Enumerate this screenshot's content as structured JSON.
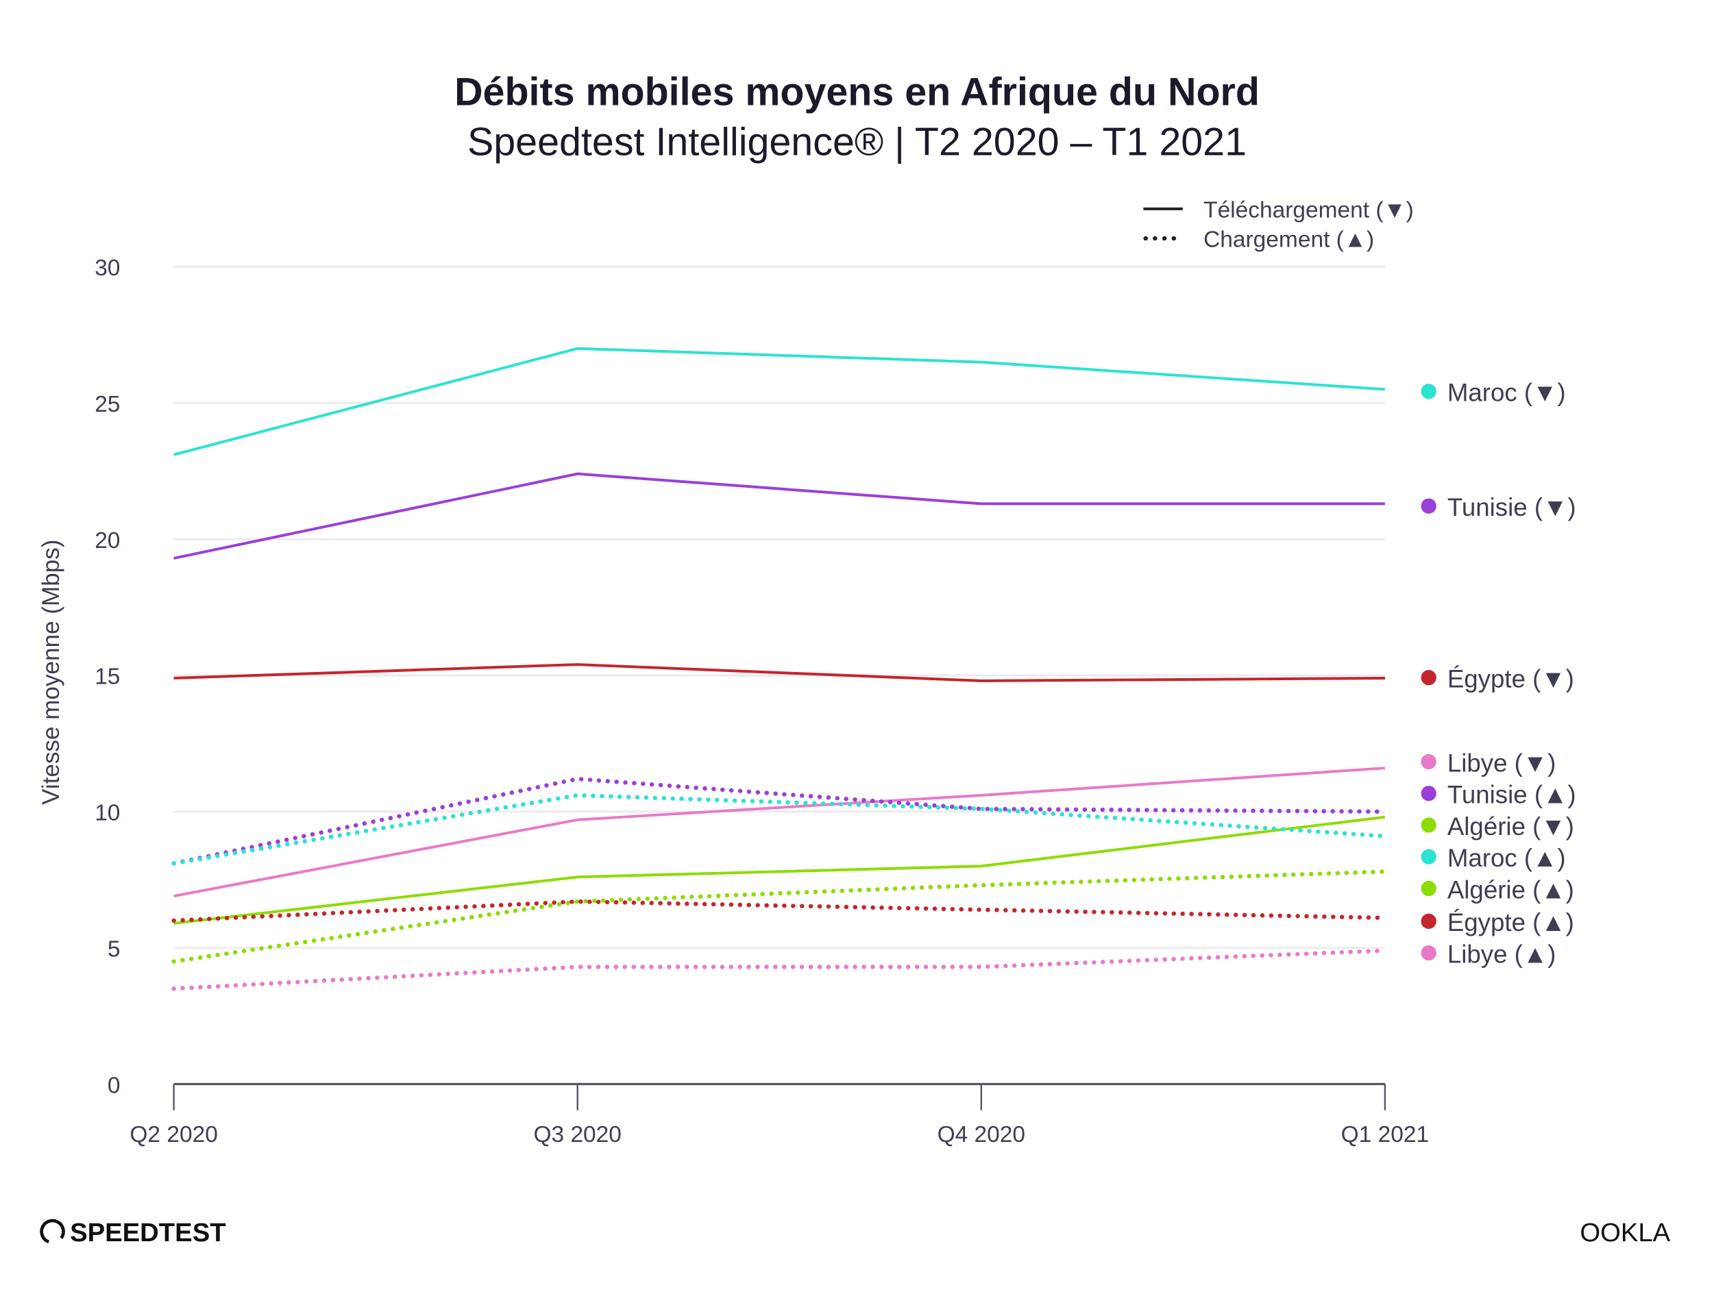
{
  "chart_data": {
    "type": "line",
    "title": "Débits mobiles moyens en Afrique du Nord",
    "subtitle": "Speedtest Intelligence® | T2 2020 – T1 2021",
    "ylabel": "Vitesse moyenne (Mbps)",
    "xlabel": "",
    "categories": [
      "Q2 2020",
      "Q3 2020",
      "Q4 2020",
      "Q1 2021"
    ],
    "ylim": [
      0,
      30
    ],
    "yticks": [
      0,
      5,
      10,
      15,
      20,
      25,
      30
    ],
    "grid": true,
    "legend": {
      "placement": "top-right",
      "items": [
        {
          "label": "Téléchargement (▼)",
          "style": "solid"
        },
        {
          "label": "Chargement (▲)",
          "style": "dotted"
        }
      ]
    },
    "series": [
      {
        "name": "Maroc (▼)",
        "color": "#2de2d2",
        "style": "solid",
        "values": [
          23.1,
          27.0,
          26.5,
          25.5
        ]
      },
      {
        "name": "Tunisie (▼)",
        "color": "#9b3fd9",
        "style": "solid",
        "values": [
          19.3,
          22.4,
          21.3,
          21.3
        ]
      },
      {
        "name": "Égypte (▼)",
        "color": "#c4262d",
        "style": "solid",
        "values": [
          14.9,
          15.4,
          14.8,
          14.9
        ]
      },
      {
        "name": "Libye (▼)",
        "color": "#e97ac8",
        "style": "solid",
        "values": [
          6.9,
          9.7,
          10.6,
          11.6
        ]
      },
      {
        "name": "Tunisie (▲)",
        "color": "#9b3fd9",
        "style": "dotted",
        "values": [
          8.1,
          11.2,
          10.1,
          10.0
        ]
      },
      {
        "name": "Algérie (▼)",
        "color": "#8ddc00",
        "style": "solid",
        "values": [
          5.9,
          7.6,
          8.0,
          9.8
        ]
      },
      {
        "name": "Maroc (▲)",
        "color": "#2de2d2",
        "style": "dotted",
        "values": [
          8.1,
          10.6,
          10.1,
          9.1
        ]
      },
      {
        "name": "Algérie (▲)",
        "color": "#8ddc00",
        "style": "dotted",
        "values": [
          4.5,
          6.7,
          7.3,
          7.8
        ]
      },
      {
        "name": "Égypte (▲)",
        "color": "#c4262d",
        "style": "dotted",
        "values": [
          6.0,
          6.7,
          6.4,
          6.1
        ]
      },
      {
        "name": "Libye (▲)",
        "color": "#e97ac8",
        "style": "dotted",
        "values": [
          3.5,
          4.3,
          4.3,
          4.9
        ]
      }
    ]
  },
  "branding": {
    "left_logo": "SPEEDTEST",
    "right_logo": "OOKLA"
  }
}
